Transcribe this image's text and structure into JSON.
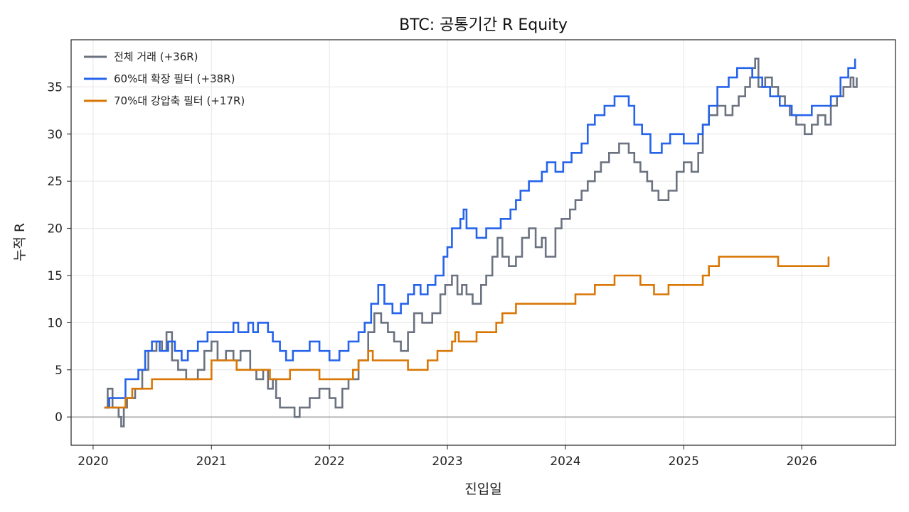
{
  "chart_data": {
    "type": "line",
    "title": "BTC: 공통기간 R Equity",
    "xlabel": "진입일",
    "ylabel": "누적 R",
    "xlim": [
      "2019-10-25",
      "2026-10-18"
    ],
    "ylim": [
      -3,
      40
    ],
    "x_ticks": [
      "2020",
      "2021",
      "2022",
      "2023",
      "2024",
      "2025",
      "2026"
    ],
    "y_ticks": [
      0,
      5,
      10,
      15,
      20,
      25,
      30,
      35
    ],
    "grid": true,
    "legend_position": "top-left",
    "reference_line_y": 0,
    "series": [
      {
        "name": "전체 거래 (+36R)",
        "color": "#6b7280",
        "points": [
          [
            "2020-02-05",
            1
          ],
          [
            "2020-02-15",
            3
          ],
          [
            "2020-03-01",
            1
          ],
          [
            "2020-03-20",
            0
          ],
          [
            "2020-03-28",
            -1
          ],
          [
            "2020-04-05",
            1
          ],
          [
            "2020-04-15",
            2
          ],
          [
            "2020-05-10",
            3
          ],
          [
            "2020-06-01",
            5
          ],
          [
            "2020-06-20",
            7
          ],
          [
            "2020-07-15",
            8
          ],
          [
            "2020-08-01",
            7
          ],
          [
            "2020-08-15",
            9
          ],
          [
            "2020-09-01",
            6
          ],
          [
            "2020-09-20",
            5
          ],
          [
            "2020-10-15",
            4
          ],
          [
            "2020-11-20",
            5
          ],
          [
            "2020-12-10",
            7
          ],
          [
            "2021-01-01",
            8
          ],
          [
            "2021-01-20",
            6
          ],
          [
            "2021-02-15",
            7
          ],
          [
            "2021-03-10",
            6
          ],
          [
            "2021-04-01",
            7
          ],
          [
            "2021-05-01",
            5
          ],
          [
            "2021-05-20",
            4
          ],
          [
            "2021-06-10",
            5
          ],
          [
            "2021-06-25",
            3
          ],
          [
            "2021-07-10",
            4
          ],
          [
            "2021-07-20",
            2
          ],
          [
            "2021-08-01",
            1
          ],
          [
            "2021-09-01",
            1
          ],
          [
            "2021-09-15",
            0
          ],
          [
            "2021-10-01",
            1
          ],
          [
            "2021-11-01",
            2
          ],
          [
            "2021-12-01",
            3
          ],
          [
            "2022-01-01",
            2
          ],
          [
            "2022-01-20",
            1
          ],
          [
            "2022-02-10",
            3
          ],
          [
            "2022-03-01",
            4
          ],
          [
            "2022-04-01",
            6
          ],
          [
            "2022-05-01",
            9
          ],
          [
            "2022-05-20",
            11
          ],
          [
            "2022-06-10",
            10
          ],
          [
            "2022-07-01",
            9
          ],
          [
            "2022-07-20",
            8
          ],
          [
            "2022-08-10",
            7
          ],
          [
            "2022-09-01",
            9
          ],
          [
            "2022-09-20",
            11
          ],
          [
            "2022-10-15",
            10
          ],
          [
            "2022-11-15",
            11
          ],
          [
            "2022-12-10",
            13
          ],
          [
            "2022-12-25",
            14
          ],
          [
            "2023-01-15",
            15
          ],
          [
            "2023-02-01",
            13
          ],
          [
            "2023-02-15",
            14
          ],
          [
            "2023-03-01",
            13
          ],
          [
            "2023-03-20",
            12
          ],
          [
            "2023-04-15",
            14
          ],
          [
            "2023-05-01",
            15
          ],
          [
            "2023-05-20",
            17
          ],
          [
            "2023-06-05",
            19
          ],
          [
            "2023-06-20",
            17
          ],
          [
            "2023-07-10",
            16
          ],
          [
            "2023-08-01",
            17
          ],
          [
            "2023-08-20",
            19
          ],
          [
            "2023-09-10",
            20
          ],
          [
            "2023-10-01",
            18
          ],
          [
            "2023-10-20",
            19
          ],
          [
            "2023-11-01",
            17
          ],
          [
            "2023-12-01",
            20
          ],
          [
            "2023-12-20",
            21
          ],
          [
            "2024-01-15",
            22
          ],
          [
            "2024-02-01",
            23
          ],
          [
            "2024-02-20",
            24
          ],
          [
            "2024-03-10",
            25
          ],
          [
            "2024-04-01",
            26
          ],
          [
            "2024-04-20",
            27
          ],
          [
            "2024-05-15",
            28
          ],
          [
            "2024-06-15",
            29
          ],
          [
            "2024-07-15",
            28
          ],
          [
            "2024-08-01",
            27
          ],
          [
            "2024-08-20",
            26
          ],
          [
            "2024-09-10",
            25
          ],
          [
            "2024-09-25",
            24
          ],
          [
            "2024-10-15",
            23
          ],
          [
            "2024-11-15",
            24
          ],
          [
            "2024-12-10",
            26
          ],
          [
            "2025-01-01",
            27
          ],
          [
            "2025-01-25",
            26
          ],
          [
            "2025-02-15",
            28
          ],
          [
            "2025-03-01",
            31
          ],
          [
            "2025-03-20",
            32
          ],
          [
            "2025-04-15",
            33
          ],
          [
            "2025-05-10",
            32
          ],
          [
            "2025-06-01",
            33
          ],
          [
            "2025-06-20",
            34
          ],
          [
            "2025-07-10",
            35
          ],
          [
            "2025-07-25",
            36
          ],
          [
            "2025-08-01",
            37
          ],
          [
            "2025-08-10",
            38
          ],
          [
            "2025-08-20",
            35
          ],
          [
            "2025-09-10",
            36
          ],
          [
            "2025-10-01",
            35
          ],
          [
            "2025-10-20",
            34
          ],
          [
            "2025-11-10",
            33
          ],
          [
            "2025-11-25",
            32
          ],
          [
            "2025-12-15",
            31
          ],
          [
            "2026-01-10",
            30
          ],
          [
            "2026-02-01",
            31
          ],
          [
            "2026-02-20",
            32
          ],
          [
            "2026-03-15",
            31
          ],
          [
            "2026-04-01",
            33
          ],
          [
            "2026-04-20",
            34
          ],
          [
            "2026-05-10",
            35
          ],
          [
            "2026-06-01",
            36
          ],
          [
            "2026-06-10",
            35
          ],
          [
            "2026-06-20",
            36
          ]
        ]
      },
      {
        "name": "60%대 확장 필터 (+38R)",
        "color": "#2563eb",
        "points": [
          [
            "2020-02-05",
            1
          ],
          [
            "2020-02-20",
            2
          ],
          [
            "2020-03-25",
            2
          ],
          [
            "2020-04-10",
            4
          ],
          [
            "2020-05-20",
            5
          ],
          [
            "2020-06-10",
            7
          ],
          [
            "2020-07-01",
            8
          ],
          [
            "2020-07-25",
            7
          ],
          [
            "2020-08-20",
            8
          ],
          [
            "2020-09-10",
            7
          ],
          [
            "2020-10-01",
            6
          ],
          [
            "2020-10-20",
            7
          ],
          [
            "2020-11-20",
            8
          ],
          [
            "2020-12-20",
            9
          ],
          [
            "2021-03-10",
            10
          ],
          [
            "2021-03-25",
            9
          ],
          [
            "2021-04-25",
            10
          ],
          [
            "2021-05-10",
            9
          ],
          [
            "2021-05-25",
            10
          ],
          [
            "2021-06-25",
            9
          ],
          [
            "2021-07-10",
            8
          ],
          [
            "2021-08-01",
            7
          ],
          [
            "2021-08-20",
            6
          ],
          [
            "2021-09-10",
            7
          ],
          [
            "2021-11-01",
            8
          ],
          [
            "2021-12-01",
            7
          ],
          [
            "2022-01-01",
            6
          ],
          [
            "2022-02-01",
            7
          ],
          [
            "2022-03-01",
            8
          ],
          [
            "2022-04-01",
            9
          ],
          [
            "2022-04-20",
            10
          ],
          [
            "2022-05-10",
            12
          ],
          [
            "2022-06-01",
            14
          ],
          [
            "2022-06-20",
            12
          ],
          [
            "2022-07-15",
            11
          ],
          [
            "2022-08-10",
            12
          ],
          [
            "2022-09-01",
            13
          ],
          [
            "2022-09-20",
            14
          ],
          [
            "2022-10-10",
            13
          ],
          [
            "2022-11-01",
            14
          ],
          [
            "2022-11-25",
            15
          ],
          [
            "2022-12-20",
            17
          ],
          [
            "2023-01-01",
            18
          ],
          [
            "2023-01-15",
            20
          ],
          [
            "2023-02-10",
            21
          ],
          [
            "2023-02-20",
            22
          ],
          [
            "2023-03-01",
            20
          ],
          [
            "2023-04-01",
            19
          ],
          [
            "2023-05-01",
            20
          ],
          [
            "2023-06-15",
            21
          ],
          [
            "2023-07-15",
            22
          ],
          [
            "2023-08-01",
            23
          ],
          [
            "2023-08-15",
            24
          ],
          [
            "2023-09-10",
            25
          ],
          [
            "2023-10-20",
            26
          ],
          [
            "2023-11-05",
            27
          ],
          [
            "2023-12-01",
            26
          ],
          [
            "2023-12-25",
            27
          ],
          [
            "2024-01-20",
            28
          ],
          [
            "2024-02-20",
            29
          ],
          [
            "2024-03-10",
            31
          ],
          [
            "2024-04-01",
            32
          ],
          [
            "2024-05-01",
            33
          ],
          [
            "2024-06-01",
            34
          ],
          [
            "2024-07-15",
            33
          ],
          [
            "2024-08-01",
            31
          ],
          [
            "2024-08-25",
            30
          ],
          [
            "2024-09-20",
            28
          ],
          [
            "2024-10-25",
            29
          ],
          [
            "2024-11-20",
            30
          ],
          [
            "2025-01-01",
            29
          ],
          [
            "2025-02-15",
            30
          ],
          [
            "2025-03-01",
            31
          ],
          [
            "2025-03-20",
            33
          ],
          [
            "2025-04-15",
            35
          ],
          [
            "2025-05-20",
            36
          ],
          [
            "2025-06-15",
            37
          ],
          [
            "2025-08-01",
            36
          ],
          [
            "2025-09-01",
            35
          ],
          [
            "2025-09-25",
            34
          ],
          [
            "2025-10-25",
            33
          ],
          [
            "2025-12-01",
            32
          ],
          [
            "2026-02-01",
            33
          ],
          [
            "2026-04-01",
            34
          ],
          [
            "2026-05-01",
            36
          ],
          [
            "2026-05-25",
            37
          ],
          [
            "2026-06-15",
            38
          ]
        ]
      },
      {
        "name": "70%대 강압축 필터 (+17R)",
        "color": "#d97706",
        "points": [
          [
            "2020-02-05",
            1
          ],
          [
            "2020-04-10",
            2
          ],
          [
            "2020-05-01",
            3
          ],
          [
            "2020-07-01",
            4
          ],
          [
            "2021-01-01",
            6
          ],
          [
            "2021-03-20",
            5
          ],
          [
            "2021-06-15",
            5
          ],
          [
            "2021-07-01",
            4
          ],
          [
            "2021-09-01",
            5
          ],
          [
            "2021-12-01",
            4
          ],
          [
            "2022-03-15",
            5
          ],
          [
            "2022-04-01",
            6
          ],
          [
            "2022-04-15",
            6
          ],
          [
            "2022-05-01",
            7
          ],
          [
            "2022-05-15",
            6
          ],
          [
            "2022-09-01",
            5
          ],
          [
            "2022-11-01",
            6
          ],
          [
            "2022-12-01",
            7
          ],
          [
            "2023-01-15",
            8
          ],
          [
            "2023-01-25",
            9
          ],
          [
            "2023-02-05",
            8
          ],
          [
            "2023-04-01",
            9
          ],
          [
            "2023-06-01",
            10
          ],
          [
            "2023-06-20",
            11
          ],
          [
            "2023-08-01",
            12
          ],
          [
            "2024-02-01",
            13
          ],
          [
            "2024-04-01",
            14
          ],
          [
            "2024-06-01",
            15
          ],
          [
            "2024-08-20",
            14
          ],
          [
            "2024-10-01",
            13
          ],
          [
            "2024-11-15",
            14
          ],
          [
            "2025-03-01",
            15
          ],
          [
            "2025-03-20",
            16
          ],
          [
            "2025-04-20",
            17
          ],
          [
            "2025-10-20",
            16
          ],
          [
            "2026-03-25",
            17
          ]
        ]
      }
    ]
  }
}
